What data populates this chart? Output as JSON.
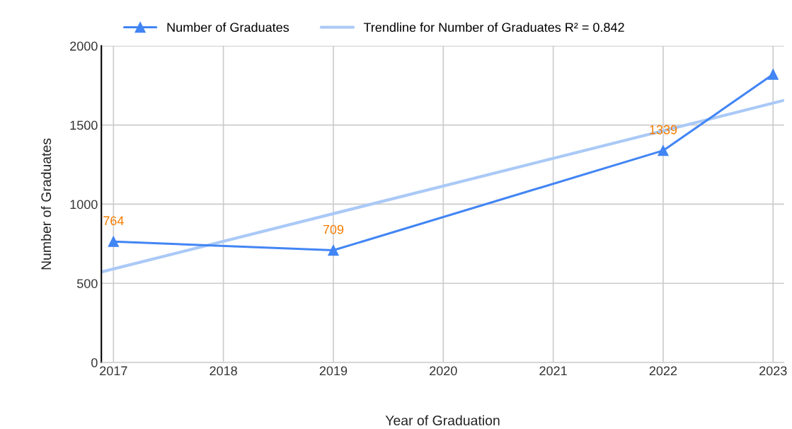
{
  "chart_data": {
    "type": "line",
    "xlabel": "Year of Graduation",
    "ylabel": "Number of Graduates",
    "xlim": [
      2016.89,
      2023.1
    ],
    "xticks": [
      2017,
      2018,
      2019,
      2020,
      2021,
      2022,
      2023
    ],
    "ylim": [
      0,
      2000
    ],
    "yticks": [
      0,
      500,
      1000,
      1500,
      2000
    ],
    "grid": true,
    "legend": "top",
    "series": [
      {
        "name": "Number of Graduates",
        "color": "#4285f4",
        "marker": "triangle",
        "x": [
          2017,
          2019,
          2022,
          2023
        ],
        "values": [
          764,
          709,
          1339,
          1820
        ],
        "value_labels": [
          "764",
          "709",
          "1339",
          null
        ]
      },
      {
        "name": "Trendline for Number of Graduates R² = 0.842",
        "color": "#aac9f7",
        "marker": "none",
        "x": [
          2016.89,
          2023.1
        ],
        "values": [
          572,
          1656
        ]
      }
    ]
  }
}
